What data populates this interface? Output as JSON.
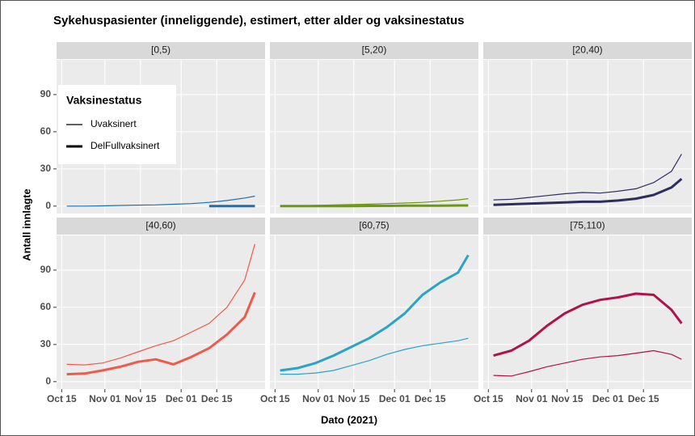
{
  "chart_data": {
    "type": "line",
    "title": "Sykehuspasienter (inneliggende), estimert, etter alder og vaksinestatus",
    "x_label": "Dato (2021)",
    "y_label": "Antall innlagte",
    "legend_title": "Vaksinestatus",
    "series": [
      {
        "name": "Uvaksinert",
        "width": 1.2
      },
      {
        "name": "DelFullvaksinert",
        "width": 3
      }
    ],
    "x": [
      "2021-10-17",
      "2021-10-24",
      "2021-10-31",
      "2021-11-07",
      "2021-11-14",
      "2021-11-21",
      "2021-11-28",
      "2021-12-05",
      "2021-12-12",
      "2021-12-19",
      "2021-12-26",
      "2021-12-30"
    ],
    "xlim": [
      "2021-10-13",
      "2022-01-03"
    ],
    "xticks": [
      {
        "value": "2021-10-15",
        "label": "Oct 15"
      },
      {
        "value": "2021-11-01",
        "label": "Nov 01"
      },
      {
        "value": "2021-11-15",
        "label": "Nov 15"
      },
      {
        "value": "2021-12-01",
        "label": "Dec 01"
      },
      {
        "value": "2021-12-15",
        "label": "Dec 15"
      }
    ],
    "ylim": [
      -6,
      118
    ],
    "yticks": [
      0,
      30,
      60,
      90
    ],
    "grid": true,
    "panels": [
      {
        "title": "[0,5)",
        "color": "#1f6fad",
        "values": [
          [
            0,
            0,
            0.2,
            0.5,
            0.8,
            1,
            1.5,
            2,
            3,
            4.5,
            6.5,
            8
          ],
          [
            null,
            null,
            null,
            null,
            null,
            null,
            null,
            null,
            0,
            0,
            0,
            0
          ]
        ]
      },
      {
        "title": "[5,20)",
        "color": "#6b990f",
        "values": [
          [
            0,
            0.3,
            0.6,
            1,
            1.3,
            1.6,
            2,
            2.5,
            3,
            4,
            5,
            6
          ],
          [
            0,
            0,
            0,
            0.1,
            0.1,
            0.2,
            0.2,
            0.3,
            0.3,
            0.4,
            0.5,
            0.5
          ]
        ]
      },
      {
        "title": "[20,40)",
        "color": "#2d2d5e",
        "values": [
          [
            5,
            5.5,
            7,
            8.5,
            10,
            11,
            10.5,
            12,
            14,
            19,
            28,
            42
          ],
          [
            1,
            1.5,
            2,
            2.5,
            3,
            3.5,
            3.5,
            4.5,
            6,
            9,
            15,
            22
          ]
        ]
      },
      {
        "title": "[40,60)",
        "color": "#f05a4a",
        "values": [
          [
            14,
            13.5,
            15,
            19,
            24,
            29,
            33,
            40,
            47,
            60,
            82,
            111
          ],
          [
            6,
            6.5,
            9,
            12,
            16,
            18,
            14,
            20,
            27,
            38,
            52,
            72
          ]
        ]
      },
      {
        "title": "[60,75)",
        "color": "#2aa3c9",
        "values": [
          [
            6,
            6,
            7,
            9,
            13,
            17,
            22,
            26,
            29,
            31,
            33,
            35
          ],
          [
            9,
            11,
            15,
            21,
            28,
            35,
            44,
            55,
            70,
            80,
            88,
            102
          ]
        ]
      },
      {
        "title": "[75,110)",
        "color": "#b0124b",
        "values": [
          [
            5,
            4.5,
            8,
            12,
            15,
            18,
            20,
            21,
            23,
            25,
            22,
            18
          ],
          [
            21,
            25,
            33,
            45,
            55,
            62,
            66,
            68,
            71,
            70,
            58,
            47
          ]
        ]
      }
    ]
  }
}
